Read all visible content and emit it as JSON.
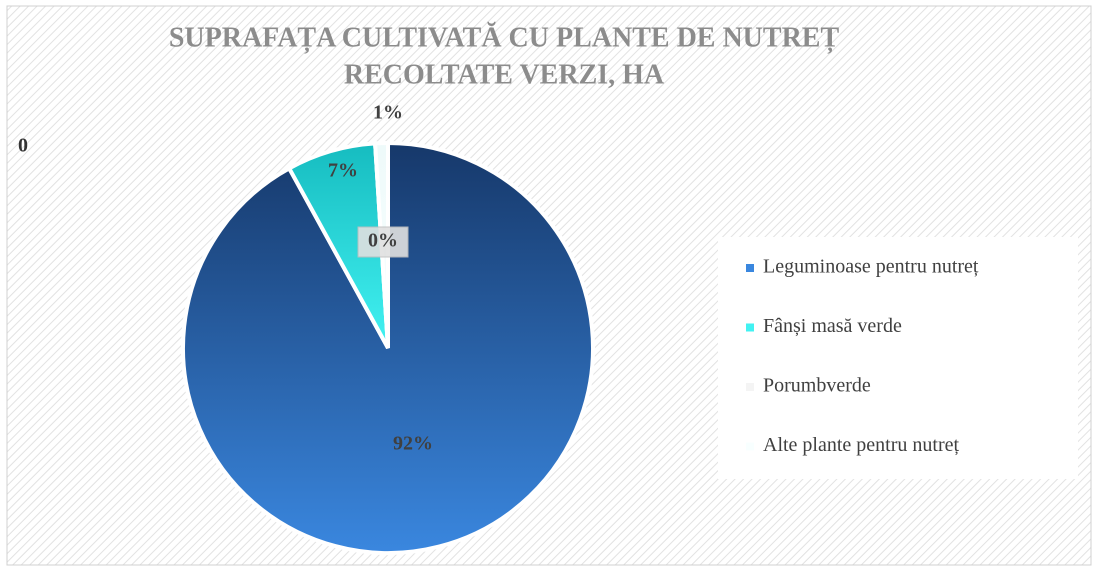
{
  "chart_data": {
    "type": "pie",
    "title": [
      "SUPRAFAȚA CULTIVATĂ CU PLANTE DE NUTREȚ",
      "RECOLTATE VERZI, HA"
    ],
    "categories": [
      "Leguminoase pentru nutreț",
      "Fânși masă verde",
      "Porumbverde",
      "Alte plante pentru nutreț"
    ],
    "values": [
      92,
      7,
      0,
      1
    ],
    "value_labels": [
      "92%",
      "7%",
      "0%",
      "1%"
    ],
    "colors": [
      [
        "#16386a",
        "#3a87df"
      ],
      [
        "#16bcc0",
        "#42f2f2"
      ],
      [
        "#e6e6e6",
        "#f4f4f4"
      ],
      [
        "#eefafa",
        "#f8ffff"
      ]
    ],
    "annotations": [
      "0"
    ],
    "legend": "right"
  }
}
